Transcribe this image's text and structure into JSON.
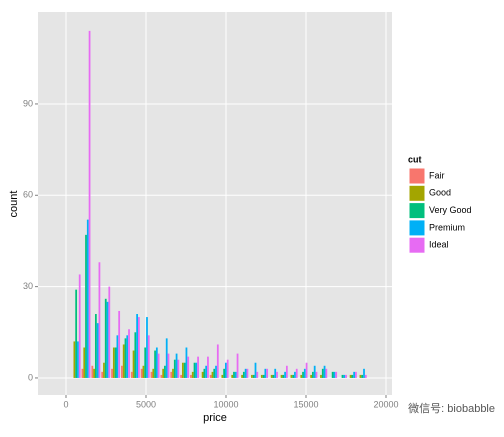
{
  "chart_data": {
    "type": "histogram",
    "x_label": "price",
    "y_label": "count",
    "legend_title": "cut",
    "legend_position": "right",
    "annotation": "微信号: biobabble",
    "bins": [
      326,
      943,
      1559,
      2176,
      2792,
      3409,
      4025,
      4642,
      5259,
      5875,
      6492,
      7108,
      7725,
      8341,
      8958,
      9574,
      10191,
      10808,
      11424,
      12041,
      12657,
      13274,
      13890,
      14507,
      15123,
      15740,
      16357,
      16973,
      17590,
      18206,
      18823
    ],
    "series": [
      {
        "name": "Fair",
        "color": "#F8766D",
        "values": [
          0,
          3,
          4,
          2,
          3,
          4,
          2,
          3,
          2,
          1,
          2,
          1,
          1,
          0,
          1,
          0,
          0,
          0,
          0,
          0,
          0,
          0,
          0,
          0,
          0,
          0,
          0,
          0,
          0,
          0
        ]
      },
      {
        "name": "Good",
        "color": "#A3A500",
        "values": [
          12,
          10,
          3,
          5,
          10,
          11,
          9,
          4,
          3,
          3,
          3,
          5,
          2,
          2,
          2,
          1,
          1,
          1,
          1,
          1,
          1,
          1,
          1,
          1,
          1,
          1,
          0,
          0,
          1,
          1
        ]
      },
      {
        "name": "Very Good",
        "color": "#00BF7D",
        "values": [
          29,
          47,
          21,
          26,
          10,
          13,
          15,
          10,
          9,
          4,
          6,
          5,
          5,
          3,
          3,
          3,
          2,
          2,
          1,
          1,
          1,
          1,
          1,
          2,
          2,
          3,
          2,
          1,
          1,
          1
        ]
      },
      {
        "name": "Premium",
        "color": "#00B0F6",
        "values": [
          12,
          52,
          18,
          25,
          14,
          14,
          21,
          20,
          10,
          13,
          8,
          10,
          5,
          4,
          4,
          5,
          2,
          3,
          5,
          3,
          3,
          2,
          2,
          3,
          4,
          4,
          2,
          1,
          2,
          3
        ]
      },
      {
        "name": "Ideal",
        "color": "#E76BF3",
        "values": [
          34,
          114,
          38,
          30,
          22,
          16,
          20,
          14,
          8,
          8,
          6,
          7,
          7,
          7,
          11,
          6,
          8,
          3,
          2,
          3,
          2,
          4,
          3,
          5,
          2,
          3,
          2,
          1,
          2,
          1
        ]
      }
    ],
    "xlim": [
      -1750,
      20375
    ],
    "ylim": [
      -5.6,
      120.2
    ],
    "xticks": [
      0,
      5000,
      10000,
      15000,
      20000
    ],
    "yticks": [
      0,
      30,
      60,
      90
    ],
    "grid": true
  }
}
